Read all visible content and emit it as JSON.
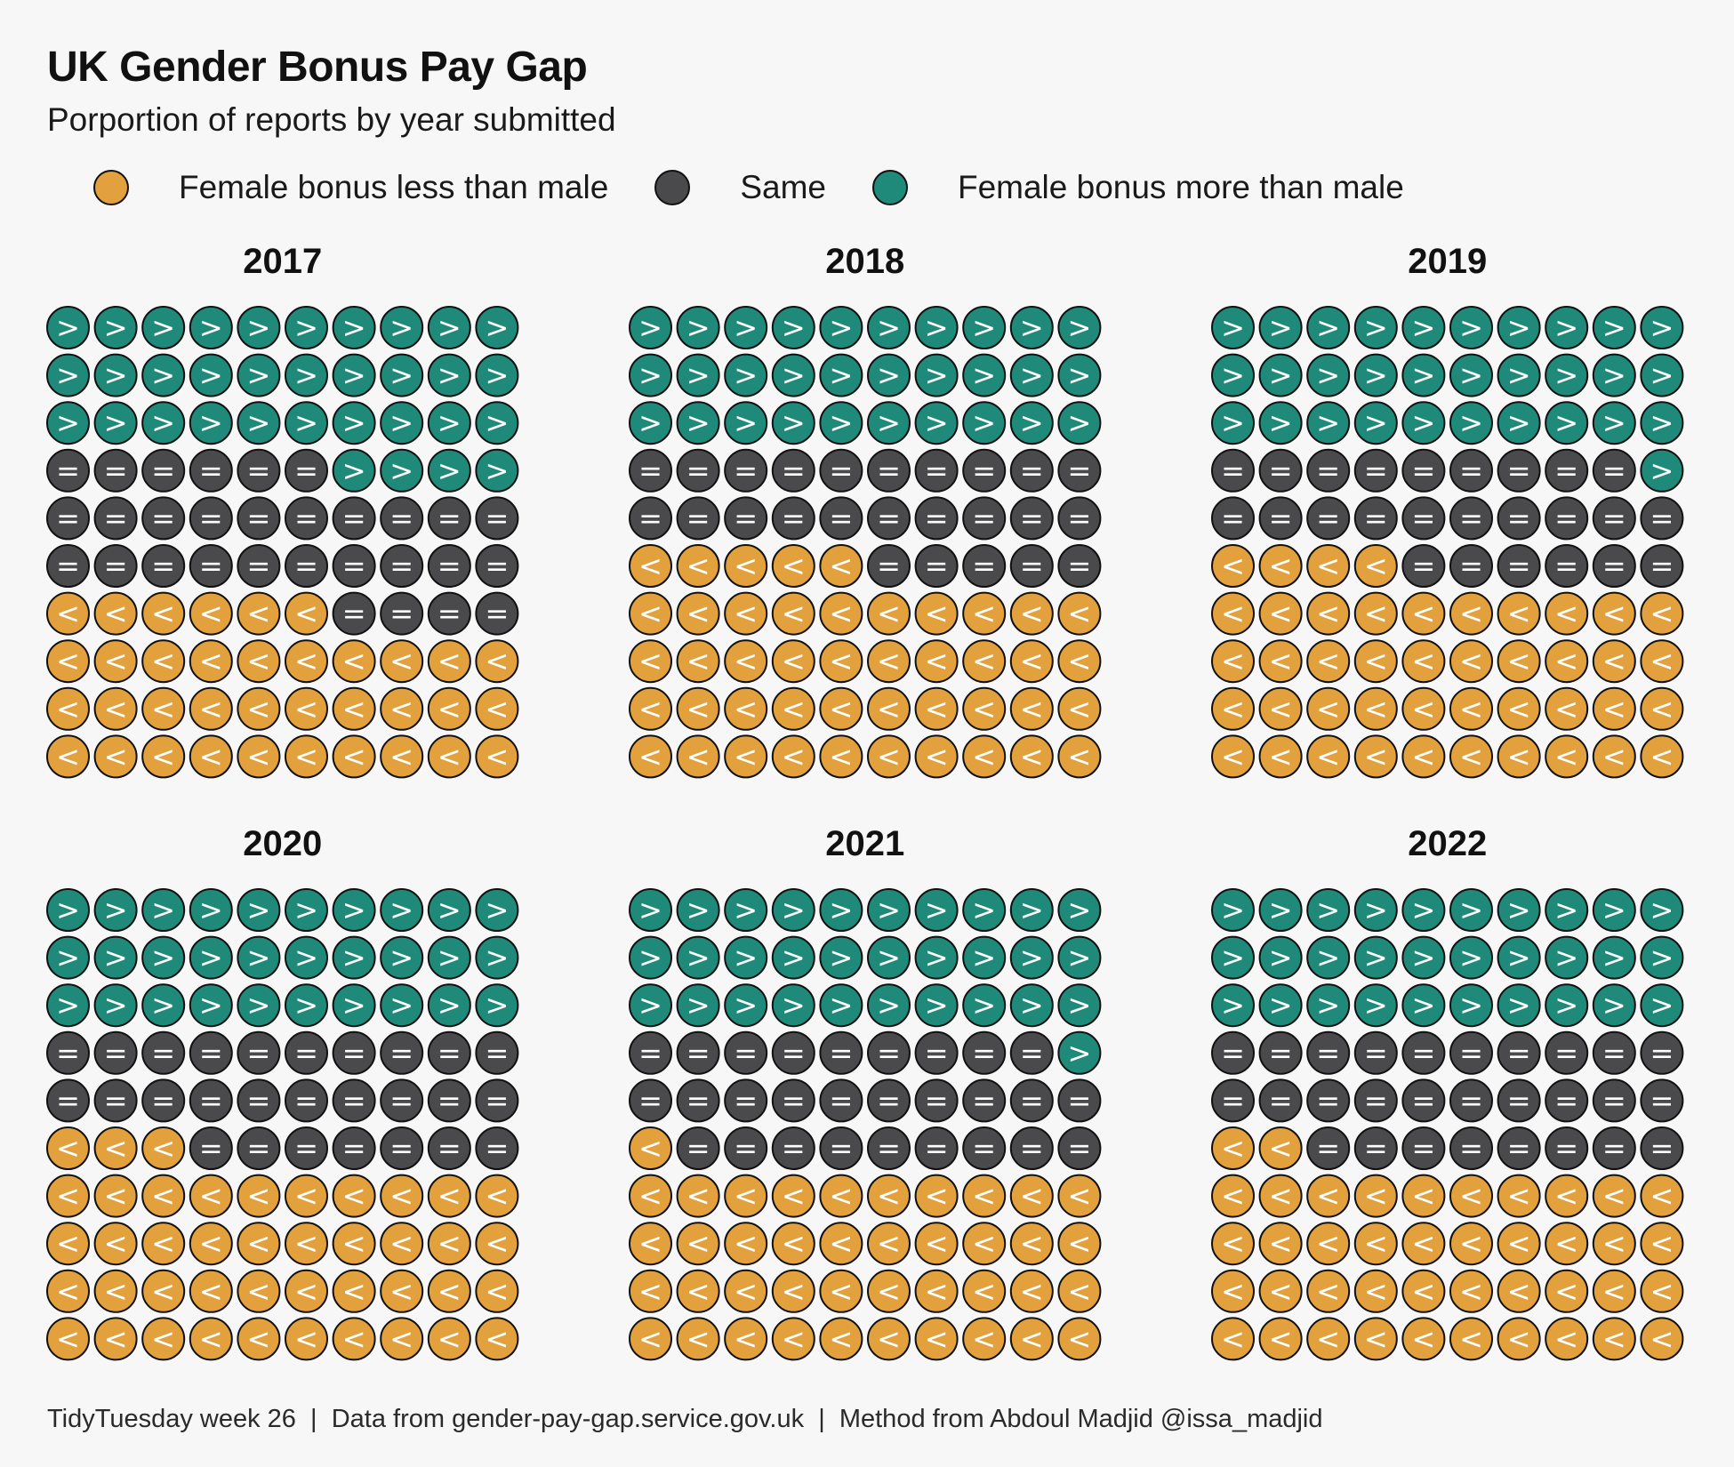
{
  "title": "UK Gender Bonus Pay Gap",
  "subtitle": "Porportion of reports by year submitted",
  "caption": "TidyTuesday week 26  |  Data from gender-pay-gap.service.gov.uk  |  Method from Abdoul Madjid @issa_madjid",
  "colors": {
    "less": "#e2a13d",
    "same": "#4a4a4c",
    "more": "#1f8a7a",
    "outline": "#111111",
    "symbol": "#ffffff"
  },
  "legend": [
    {
      "key": "less",
      "label": "Female bonus less than male",
      "icon": "orange-circle-icon"
    },
    {
      "key": "same",
      "label": "Same",
      "icon": "dark-grey-circle-icon"
    },
    {
      "key": "more",
      "label": "Female bonus more than male",
      "icon": "teal-circle-icon"
    }
  ],
  "chart_data": {
    "type": "waffle",
    "grid": {
      "rows": 10,
      "cols": 10
    },
    "symbols": {
      "less": "<",
      "same": "=",
      "more": ">"
    },
    "panels": [
      {
        "year": "2017",
        "more": 34,
        "same": 30,
        "less": 36
      },
      {
        "year": "2018",
        "more": 30,
        "same": 25,
        "less": 45
      },
      {
        "year": "2019",
        "more": 31,
        "same": 25,
        "less": 44
      },
      {
        "year": "2020",
        "more": 30,
        "same": 27,
        "less": 43
      },
      {
        "year": "2021",
        "more": 31,
        "same": 28,
        "less": 41
      },
      {
        "year": "2022",
        "more": 30,
        "same": 28,
        "less": 42
      }
    ]
  }
}
